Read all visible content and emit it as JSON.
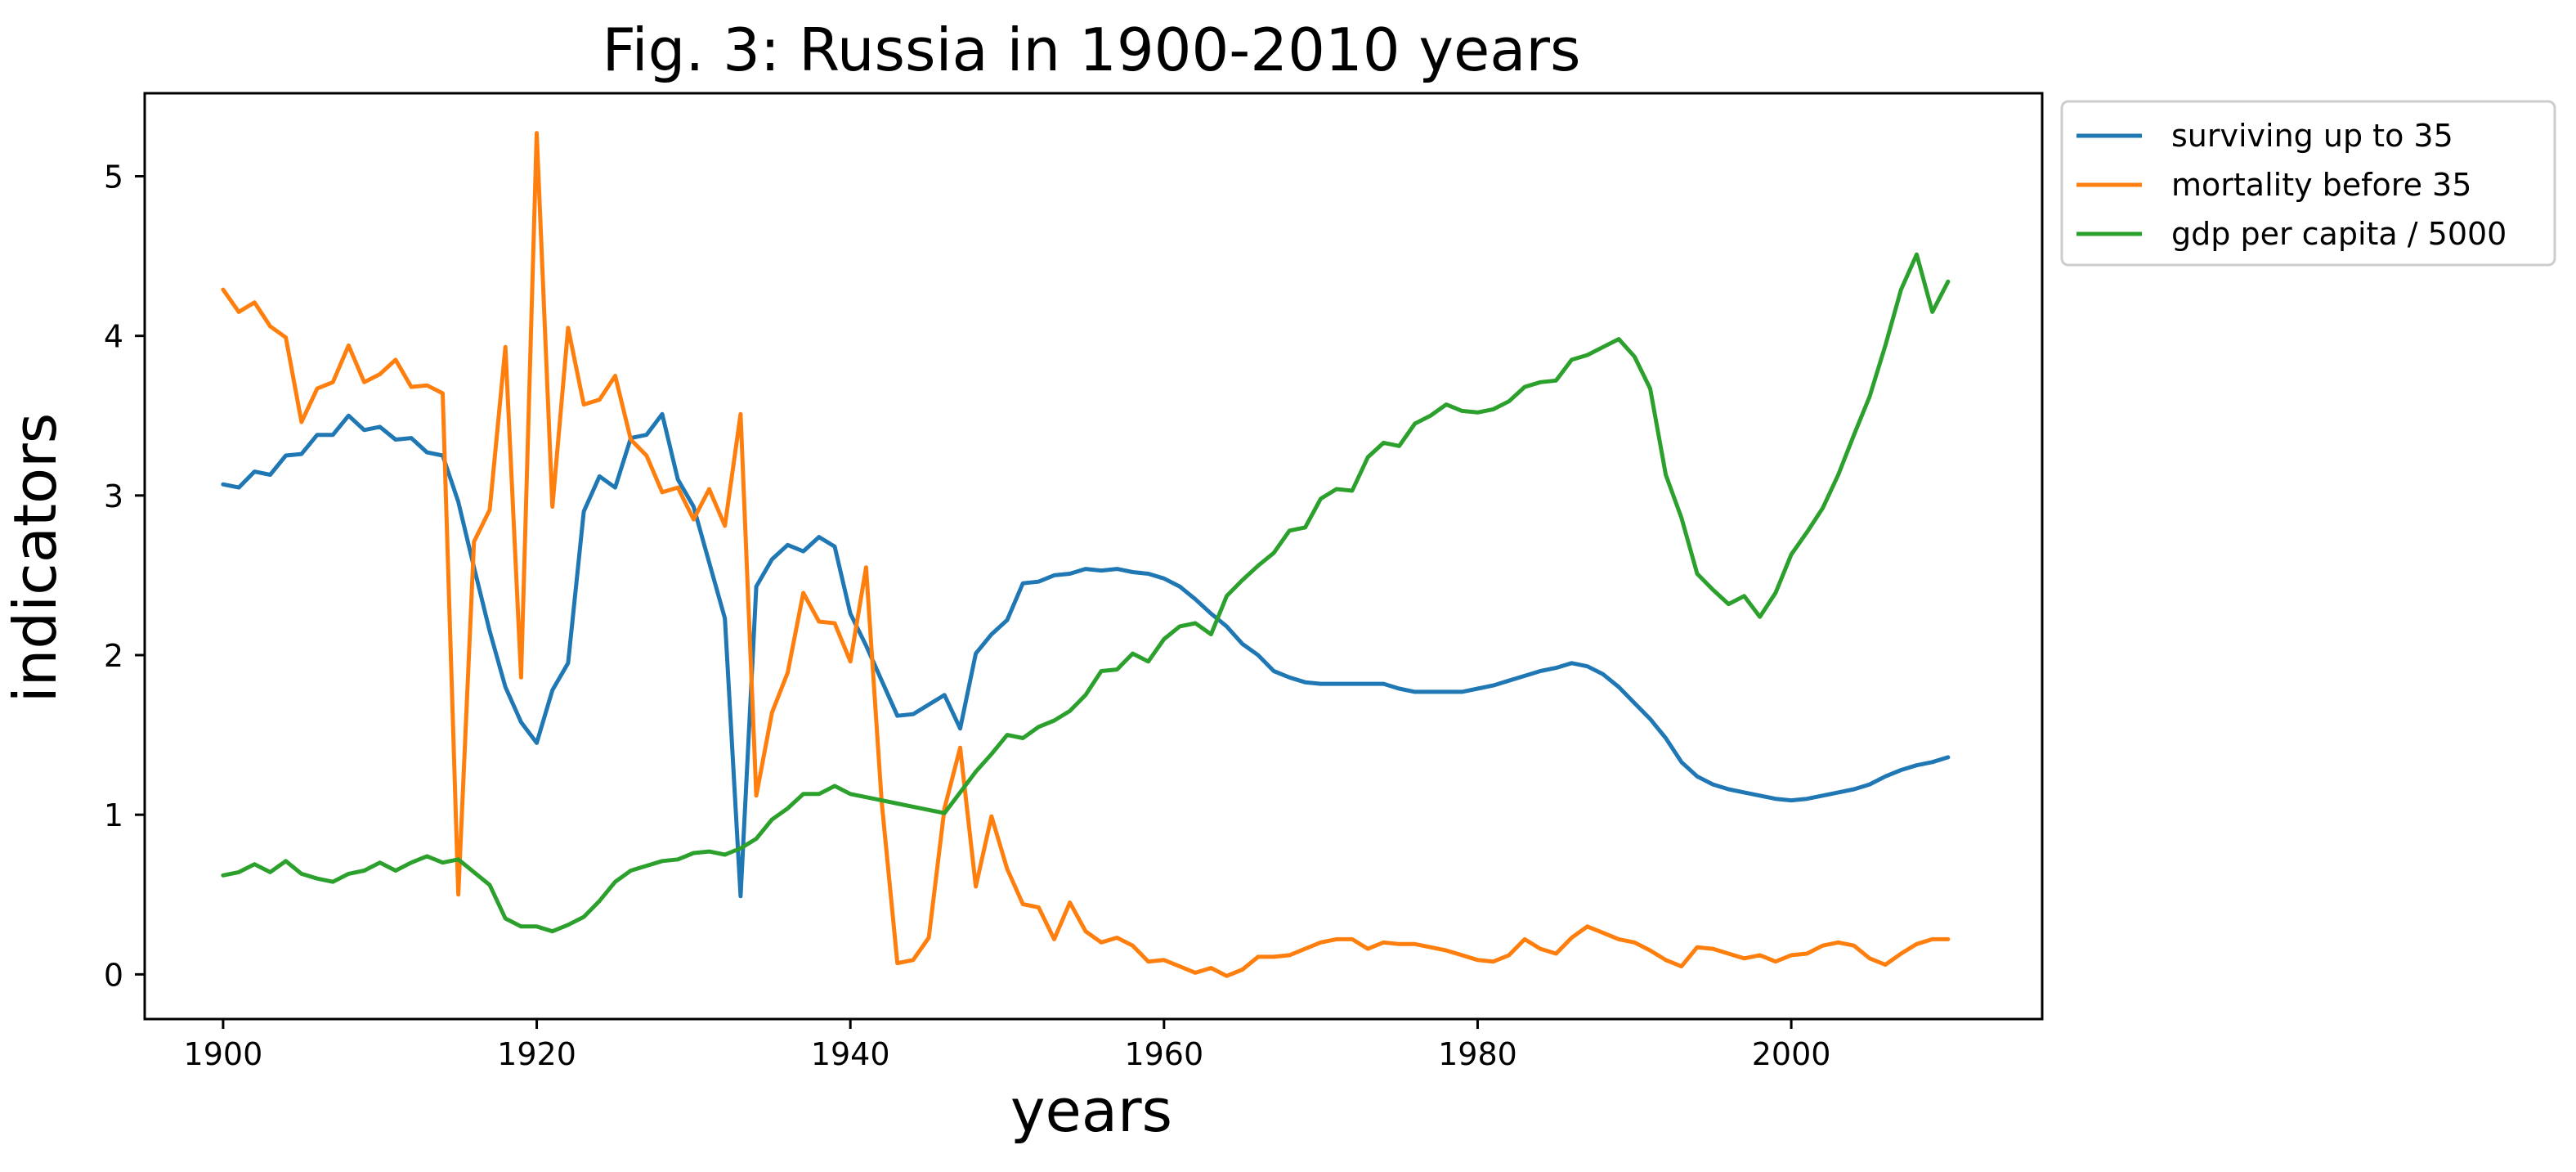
{
  "chart_data": {
    "type": "line",
    "title": "Fig. 3: Russia in 1900-2010 years",
    "xlabel": "years",
    "ylabel": "indicators",
    "xlim": [
      1895,
      2016
    ],
    "ylim": [
      -0.28,
      5.52
    ],
    "xticks": [
      1900,
      1920,
      1940,
      1960,
      1980,
      2000
    ],
    "xtick_labels": [
      "1900",
      "1920",
      "1940",
      "1960",
      "1980",
      "2000"
    ],
    "yticks": [
      0,
      1,
      2,
      3,
      4,
      5
    ],
    "ytick_labels": [
      "0",
      "1",
      "2",
      "3",
      "4",
      "5"
    ],
    "grid": false,
    "legend": "outside top-right",
    "x": [
      1900,
      1901,
      1902,
      1903,
      1904,
      1905,
      1906,
      1907,
      1908,
      1909,
      1910,
      1911,
      1912,
      1913,
      1914,
      1915,
      1916,
      1917,
      1918,
      1919,
      1920,
      1921,
      1922,
      1923,
      1924,
      1925,
      1926,
      1927,
      1928,
      1929,
      1930,
      1931,
      1932,
      1933,
      1934,
      1935,
      1936,
      1937,
      1938,
      1939,
      1940,
      1941,
      1942,
      1943,
      1944,
      1945,
      1946,
      1947,
      1948,
      1949,
      1950,
      1951,
      1952,
      1953,
      1954,
      1955,
      1956,
      1957,
      1958,
      1959,
      1960,
      1961,
      1962,
      1963,
      1964,
      1965,
      1966,
      1967,
      1968,
      1969,
      1970,
      1971,
      1972,
      1973,
      1974,
      1975,
      1976,
      1977,
      1978,
      1979,
      1980,
      1981,
      1982,
      1983,
      1984,
      1985,
      1986,
      1987,
      1988,
      1989,
      1990,
      1991,
      1992,
      1993,
      1994,
      1995,
      1996,
      1997,
      1998,
      1999,
      2000,
      2001,
      2002,
      2003,
      2004,
      2005,
      2006,
      2007,
      2008,
      2009,
      2010
    ],
    "series": [
      {
        "name": "surviving up to 35",
        "color": "#1f77b4",
        "values": [
          3.07,
          3.05,
          3.15,
          3.13,
          3.25,
          3.26,
          3.38,
          3.38,
          3.5,
          3.41,
          3.43,
          3.35,
          3.36,
          3.27,
          3.25,
          2.96,
          2.55,
          2.15,
          1.8,
          1.58,
          1.45,
          1.78,
          1.95,
          2.9,
          3.12,
          3.05,
          3.36,
          3.38,
          3.51,
          3.1,
          2.93,
          2.58,
          2.23,
          0.49,
          2.43,
          2.6,
          2.69,
          2.65,
          2.74,
          2.68,
          2.26,
          2.06,
          1.84,
          1.62,
          1.63,
          1.69,
          1.75,
          1.54,
          2.01,
          2.13,
          2.22,
          2.45,
          2.46,
          2.5,
          2.51,
          2.54,
          2.53,
          2.54,
          2.52,
          2.51,
          2.48,
          2.43,
          2.35,
          2.26,
          2.18,
          2.07,
          2.0,
          1.9,
          1.86,
          1.83,
          1.82,
          1.82,
          1.82,
          1.82,
          1.82,
          1.79,
          1.77,
          1.77,
          1.77,
          1.77,
          1.79,
          1.81,
          1.84,
          1.87,
          1.9,
          1.92,
          1.95,
          1.93,
          1.88,
          1.8,
          1.7,
          1.6,
          1.48,
          1.33,
          1.24,
          1.19,
          1.16,
          1.14,
          1.12,
          1.1,
          1.09,
          1.1,
          1.12,
          1.14,
          1.16,
          1.19,
          1.24,
          1.28,
          1.31,
          1.33,
          1.36
        ]
      },
      {
        "name": "mortality before 35",
        "color": "#ff7f0e",
        "values": [
          4.29,
          4.15,
          4.21,
          4.06,
          3.99,
          3.46,
          3.67,
          3.71,
          3.94,
          3.71,
          3.76,
          3.85,
          3.68,
          3.69,
          3.64,
          0.5,
          2.71,
          2.91,
          3.93,
          1.86,
          5.27,
          2.93,
          4.05,
          3.57,
          3.6,
          3.75,
          3.35,
          3.25,
          3.02,
          3.05,
          2.85,
          3.04,
          2.81,
          3.51,
          1.12,
          1.64,
          1.89,
          2.39,
          2.21,
          2.2,
          1.96,
          2.55,
          1.08,
          0.07,
          0.09,
          0.23,
          1.04,
          1.42,
          0.55,
          0.99,
          0.66,
          0.44,
          0.42,
          0.22,
          0.45,
          0.27,
          0.2,
          0.23,
          0.18,
          0.08,
          0.09,
          0.05,
          0.01,
          0.04,
          -0.01,
          0.03,
          0.11,
          0.11,
          0.12,
          0.16,
          0.2,
          0.22,
          0.22,
          0.16,
          0.2,
          0.19,
          0.19,
          0.17,
          0.15,
          0.12,
          0.09,
          0.08,
          0.12,
          0.22,
          0.16,
          0.13,
          0.23,
          0.3,
          0.26,
          0.22,
          0.2,
          0.15,
          0.09,
          0.05,
          0.17,
          0.16,
          0.13,
          0.1,
          0.12,
          0.08,
          0.12,
          0.13,
          0.18,
          0.2,
          0.18,
          0.1,
          0.06,
          0.13,
          0.19,
          0.22,
          0.22
        ]
      },
      {
        "name": "gdp per capita / 5000",
        "color": "#2ca02c",
        "values": [
          0.62,
          0.64,
          0.69,
          0.64,
          0.71,
          0.63,
          0.6,
          0.58,
          0.63,
          0.65,
          0.7,
          0.65,
          0.7,
          0.74,
          0.7,
          0.72,
          0.64,
          0.56,
          0.35,
          0.3,
          0.3,
          0.27,
          0.31,
          0.36,
          0.46,
          0.58,
          0.65,
          0.68,
          0.71,
          0.72,
          0.76,
          0.77,
          0.75,
          0.79,
          0.85,
          0.97,
          1.04,
          1.13,
          1.13,
          1.18,
          1.13,
          1.11,
          1.09,
          1.07,
          1.05,
          1.03,
          1.01,
          1.14,
          1.27,
          1.38,
          1.5,
          1.48,
          1.55,
          1.59,
          1.65,
          1.75,
          1.9,
          1.91,
          2.01,
          1.96,
          2.1,
          2.18,
          2.2,
          2.13,
          2.37,
          2.47,
          2.56,
          2.64,
          2.78,
          2.8,
          2.98,
          3.04,
          3.03,
          3.24,
          3.33,
          3.31,
          3.45,
          3.5,
          3.57,
          3.53,
          3.52,
          3.54,
          3.59,
          3.68,
          3.71,
          3.72,
          3.85,
          3.88,
          3.93,
          3.98,
          3.87,
          3.67,
          3.13,
          2.86,
          2.51,
          2.41,
          2.32,
          2.37,
          2.24,
          2.39,
          2.63,
          2.77,
          2.92,
          3.13,
          3.38,
          3.62,
          3.94,
          4.29,
          4.51,
          4.15,
          4.34
        ]
      }
    ]
  }
}
